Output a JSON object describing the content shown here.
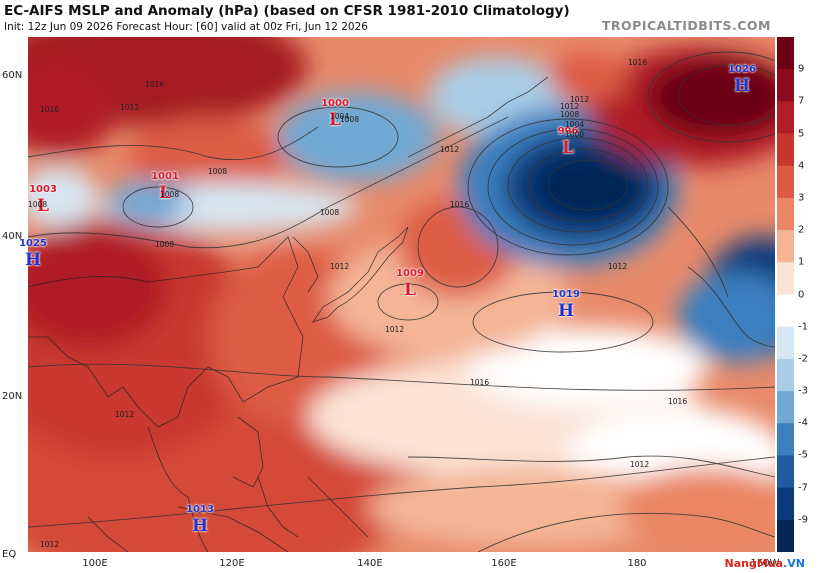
{
  "header": {
    "title": "EC-AIFS MSLP and Anomaly (hPa) (based on CFSR 1981-2010 Climatology)",
    "subtitle": "Init: 12z Jun 09 2026   Forecast Hour: [60]   valid at 00z Fri, Jun 12 2026",
    "brand": "TROPICALTIDBITS.COM"
  },
  "axes": {
    "lat_labels": [
      "60N",
      "40N",
      "20N",
      "EQ"
    ],
    "lon_labels": [
      "100E",
      "120E",
      "140E",
      "160E",
      "180",
      "160W"
    ]
  },
  "colorbar": {
    "labels": [
      "9",
      "7",
      "5",
      "4",
      "3",
      "2",
      "1",
      "0",
      "-1",
      "-2",
      "-3",
      "-4",
      "-5",
      "-7",
      "-9"
    ],
    "colors": [
      "#6b0017",
      "#8e0b1f",
      "#b01f28",
      "#c8372f",
      "#dd5b45",
      "#ea8663",
      "#f4b597",
      "#fbe3d6",
      "#ffffff",
      "#d7e7f3",
      "#a9cde7",
      "#6fa9d4",
      "#3b7fbf",
      "#1f5aa2",
      "#0b3a7c",
      "#062656"
    ]
  },
  "pressure_centers": [
    {
      "type": "L",
      "value": "1000",
      "color": "#d81b2e"
    },
    {
      "type": "L",
      "value": "1001",
      "color": "#d81b2e"
    },
    {
      "type": "L",
      "value": "1003",
      "color": "#d81b2e"
    },
    {
      "type": "H",
      "value": "1025",
      "color": "#2233cc"
    },
    {
      "type": "L",
      "value": "1009",
      "color": "#d81b2e"
    },
    {
      "type": "L",
      "value": "996",
      "color": "#d81b2e"
    },
    {
      "type": "H",
      "value": "1019",
      "color": "#2233cc"
    },
    {
      "type": "H",
      "value": "1026",
      "color": "#2233cc"
    },
    {
      "type": "H",
      "value": "1013",
      "color": "#2233cc"
    }
  ],
  "isobar_labels": [
    "1016",
    "1012",
    "1008",
    "1008",
    "1012",
    "1012",
    "1008",
    "1016",
    "1012",
    "1004",
    "1008",
    "1016",
    "1012",
    "1000",
    "1004",
    "1008",
    "1012",
    "1016",
    "1016",
    "1012",
    "1012",
    "1008",
    "1008",
    "1016",
    "1012",
    "1012"
  ],
  "watermark": {
    "brand": "NangMua",
    "suffix": ".VN"
  }
}
